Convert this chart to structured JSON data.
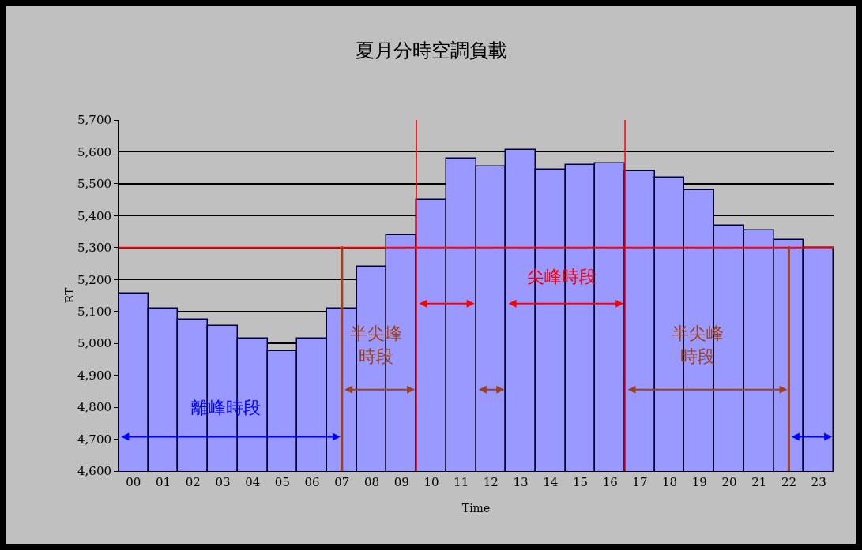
{
  "chart_data": {
    "type": "bar",
    "title": "夏月分時空調負載",
    "xlabel": "Time",
    "ylabel": "RT",
    "categories": [
      "00",
      "01",
      "02",
      "03",
      "04",
      "05",
      "06",
      "07",
      "08",
      "09",
      "10",
      "11",
      "12",
      "13",
      "14",
      "15",
      "16",
      "17",
      "18",
      "19",
      "20",
      "21",
      "22",
      "23"
    ],
    "values": [
      5155,
      5110,
      5075,
      5055,
      5015,
      4975,
      5015,
      5110,
      5240,
      5340,
      5450,
      5580,
      5555,
      5605,
      5545,
      5560,
      5565,
      5540,
      5520,
      5480,
      5370,
      5355,
      5325,
      5300
    ],
    "color": "#9999ff",
    "ylim": [
      4600,
      5700
    ],
    "yticks": [
      {
        "value": 4600,
        "label": "4,600"
      },
      {
        "value": 4700,
        "label": "4,700"
      },
      {
        "value": 4800,
        "label": "4,800"
      },
      {
        "value": 4900,
        "label": "4,900"
      },
      {
        "value": 5000,
        "label": "5,000"
      },
      {
        "value": 5100,
        "label": "5,100"
      },
      {
        "value": 5200,
        "label": "5,200"
      },
      {
        "value": 5300,
        "label": "5,300"
      },
      {
        "value": 5400,
        "label": "5,400"
      },
      {
        "value": 5500,
        "label": "5,500"
      },
      {
        "value": 5600,
        "label": "5,600"
      },
      {
        "value": 5700,
        "label": "5,700"
      }
    ],
    "grid": "y",
    "ref_lines": [
      {
        "axis": "y",
        "value": 5300,
        "color": "#ff0000"
      },
      {
        "axis": "x",
        "value": "07",
        "color": "#a0401a"
      },
      {
        "axis": "x",
        "value": "22",
        "color": "#a0401a"
      }
    ],
    "annotations": [
      "離峰時段",
      "半尖峰時段",
      "尖峰時段",
      "半尖峰時段"
    ]
  }
}
